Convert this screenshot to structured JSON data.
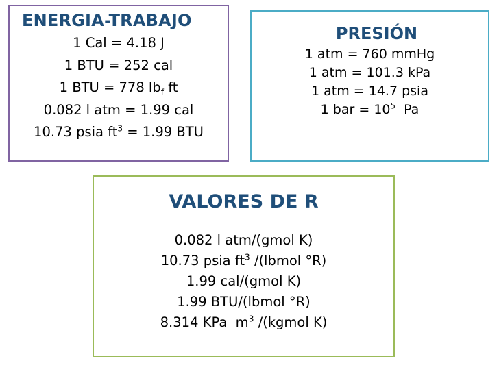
{
  "energia": {
    "title": "ENERGIA-TRABAJO",
    "line1": "1 Cal = 4.18 J",
    "line2": "1 BTU = 252 cal",
    "line3": {
      "a": "1 BTU = 778 lb",
      "sub": "f",
      "b": " ft"
    },
    "line4": "0.082 l atm = 1.99 cal",
    "line5": {
      "a": "10.73 psia ft",
      "sup": "3",
      "b": " = 1.99 BTU"
    }
  },
  "presion": {
    "title": "PRESIÓN",
    "line1": "1 atm = 760 mmHg",
    "line2": "1 atm = 101.3 kPa",
    "line3": "1 atm = 14.7 psia",
    "line4": {
      "a": "1 bar = 10",
      "sup": "5",
      "b": "  Pa"
    }
  },
  "valores": {
    "title": "VALORES DE R",
    "line1": "0.082 l atm/(gmol K)",
    "line2": {
      "a": "10.73 psia ft",
      "sup": "3",
      "b": " /(lbmol °R)"
    },
    "line3": "1.99 cal/(gmol K)",
    "line4": "1.99 BTU/(lbmol °R)",
    "line5": {
      "a": "8.314 KPa  m",
      "sup": "3",
      "b": " /(kgmol K)"
    }
  },
  "colors": {
    "title": "#1f4e79",
    "energia_border": "#8064a2",
    "presion_border": "#4bacc6",
    "valores_border": "#9bbb59"
  }
}
